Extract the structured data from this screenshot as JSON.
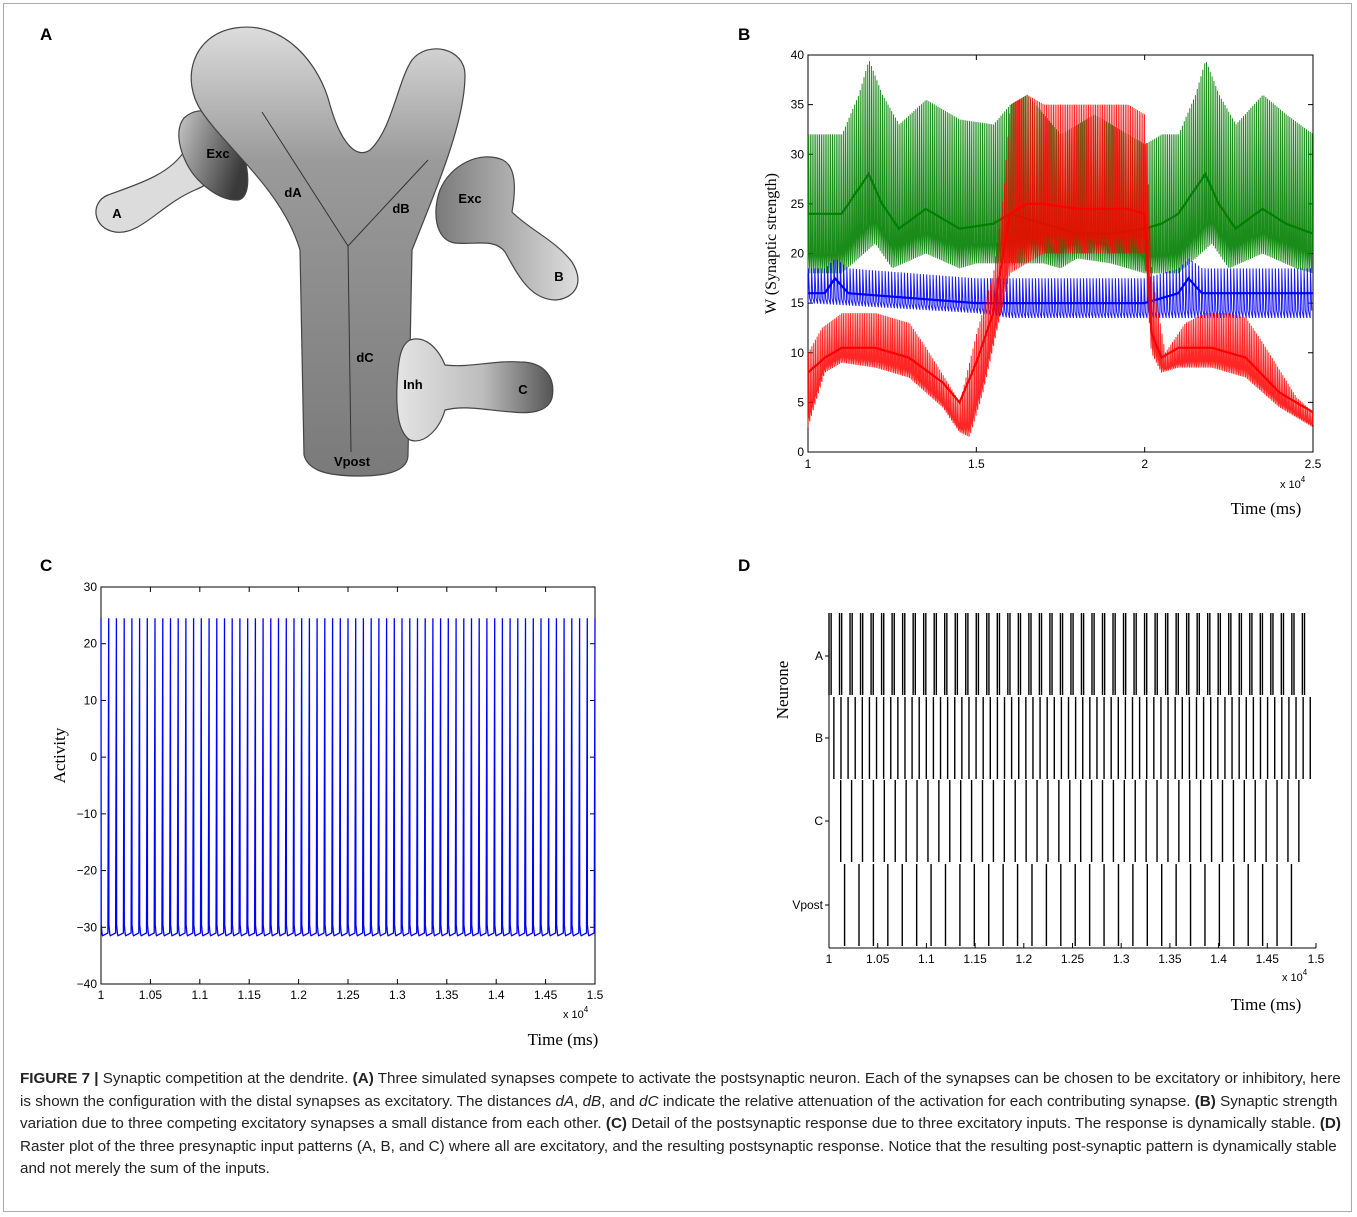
{
  "panels": {
    "A": {
      "letter": "A",
      "labels": {
        "exc_left": "Exc",
        "a": "A",
        "da": "dA",
        "db": "dB",
        "exc_right": "Exc",
        "b": "B",
        "dc": "dC",
        "inh": "Inh",
        "c": "C",
        "vpost": "Vpost"
      },
      "colors": {
        "light": "#dcdcdc",
        "dark": "#7a7a7a",
        "outline": "#444444"
      }
    },
    "B": {
      "letter": "B",
      "chart_data": {
        "type": "line",
        "xlabel": "Time (ms)",
        "ylabel": "W (Synaptic strength)",
        "x_multiplier": "x 10^4",
        "xlim": [
          1,
          2.5
        ],
        "ylim": [
          0,
          40
        ],
        "xticks": [
          "1",
          "1.5",
          "2",
          "2.5"
        ],
        "yticks": [
          "0",
          "5",
          "10",
          "15",
          "20",
          "25",
          "30",
          "35",
          "40"
        ],
        "series": [
          {
            "color": "#008000",
            "upper_x": [
              1,
              1.1,
              1.15,
              1.18,
              1.22,
              1.27,
              1.35,
              1.45,
              1.55,
              1.6,
              1.65,
              1.7,
              1.75,
              1.8,
              1.85,
              1.9,
              1.95,
              2.0,
              2.05,
              2.1,
              2.15,
              2.18,
              2.22,
              2.27,
              2.35,
              2.42,
              2.5
            ],
            "upper_y": [
              32,
              32,
              36,
              39.5,
              36,
              33,
              35.5,
              33.5,
              33,
              35,
              36,
              34,
              32,
              33,
              34,
              33,
              32,
              31,
              32,
              32,
              36,
              39.5,
              36,
              33,
              36,
              34,
              32
            ],
            "mid_x": [
              1,
              1.1,
              1.15,
              1.18,
              1.22,
              1.27,
              1.35,
              1.45,
              1.55,
              1.6,
              1.7,
              1.8,
              1.9,
              2.0,
              2.05,
              2.1,
              2.15,
              2.18,
              2.22,
              2.27,
              2.35,
              2.42,
              2.5
            ],
            "mid_y": [
              24,
              24,
              26.5,
              28,
              25,
              22.5,
              24.5,
              22.5,
              23,
              24,
              23,
              22,
              22,
              22.5,
              23,
              24,
              26.5,
              28,
              25,
              22.5,
              24.5,
              23,
              22
            ],
            "lower_x": [
              1,
              1.1,
              1.15,
              1.2,
              1.25,
              1.35,
              1.45,
              1.5,
              1.6,
              1.7,
              1.75,
              1.8,
              1.9,
              2.0,
              2.1,
              2.15,
              2.2,
              2.25,
              2.35,
              2.45,
              2.5
            ],
            "lower_y": [
              18,
              18,
              19.5,
              21,
              18.5,
              20,
              18.5,
              19,
              19,
              19,
              18.5,
              19.5,
              19,
              18,
              18,
              19.5,
              21,
              18.5,
              20,
              18.5,
              18
            ]
          },
          {
            "color": "#0000ff",
            "upper_x": [
              1,
              1.05,
              1.08,
              1.12,
              1.5,
              2.0,
              2.1,
              2.13,
              2.17,
              2.5
            ],
            "upper_y": [
              18.5,
              18.5,
              19.5,
              18.5,
              17.5,
              17.5,
              18.5,
              19.5,
              18.5,
              18.5
            ],
            "mid_x": [
              1,
              1.05,
              1.08,
              1.12,
              1.5,
              2.0,
              2.1,
              2.13,
              2.17,
              2.5
            ],
            "mid_y": [
              16,
              16,
              17.5,
              16,
              15,
              15,
              16,
              17.5,
              16,
              16
            ],
            "lower_x": [
              1,
              1.5,
              1.6,
              2.0,
              2.5
            ],
            "lower_y": [
              15,
              14,
              13.5,
              13.5,
              13.5
            ]
          },
          {
            "color": "#ff0000",
            "upper_x": [
              1,
              1.04,
              1.1,
              1.2,
              1.3,
              1.35,
              1.45,
              1.5,
              1.55,
              1.58,
              1.6,
              1.65,
              1.7,
              1.75,
              1.8,
              1.85,
              1.9,
              1.95,
              2.0,
              2.02,
              2.06,
              2.12,
              2.18,
              2.25,
              2.3,
              2.35,
              2.45,
              2.5
            ],
            "upper_y": [
              10,
              12.5,
              14,
              14,
              13,
              10.5,
              5,
              12,
              18,
              26,
              35,
              36,
              35,
              35,
              35,
              35,
              35,
              35,
              34,
              18,
              10,
              13,
              14,
              14,
              13.5,
              11,
              5.5,
              4
            ],
            "mid_x": [
              1,
              1.05,
              1.1,
              1.2,
              1.3,
              1.4,
              1.45,
              1.5,
              1.55,
              1.6,
              1.65,
              1.7,
              1.8,
              1.9,
              1.95,
              2.0,
              2.02,
              2.05,
              2.1,
              2.2,
              2.3,
              2.4,
              2.5
            ],
            "mid_y": [
              8,
              9.5,
              10.5,
              10.5,
              9.5,
              7,
              5,
              9,
              14,
              24,
              25,
              25,
              24.5,
              24.5,
              24.5,
              24,
              12,
              9.5,
              10.5,
              10.5,
              9.5,
              6,
              4
            ],
            "lower_x": [
              1,
              1.05,
              1.1,
              1.2,
              1.3,
              1.4,
              1.45,
              1.48,
              1.52,
              1.56,
              1.6,
              1.7,
              1.8,
              1.9,
              2.0,
              2.02,
              2.05,
              2.1,
              2.2,
              2.3,
              2.4,
              2.5
            ],
            "lower_y": [
              2.5,
              8,
              9,
              8.5,
              7.5,
              4.5,
              2,
              1.5,
              6,
              12,
              18,
              20,
              20,
              20,
              20,
              10,
              8,
              8.5,
              8.5,
              7.5,
              4.5,
              2.5
            ]
          }
        ],
        "oscillation_periods": [
          0.0055,
          0.0095,
          0.0052
        ]
      }
    },
    "C": {
      "letter": "C",
      "chart_data": {
        "type": "line",
        "xlabel": "Time (ms)",
        "ylabel": "Activity",
        "x_multiplier": "x 10^4",
        "xlim": [
          1,
          1.5
        ],
        "ylim": [
          -40,
          30
        ],
        "xticks": [
          "1",
          "1.05",
          "1.1",
          "1.15",
          "1.2",
          "1.25",
          "1.3",
          "1.35",
          "1.4",
          "1.45",
          "1.5"
        ],
        "yticks": [
          "-40",
          "-30",
          "-20",
          "-10",
          "0",
          "10",
          "20",
          "30"
        ],
        "series": [
          {
            "color": "#0000ff",
            "spike_count": 64,
            "spike_peak": 24.5,
            "baseline": -31.5,
            "reset_level": -29.5
          }
        ]
      }
    },
    "D": {
      "letter": "D",
      "chart_data": {
        "type": "raster",
        "xlabel": "Time (ms)",
        "ylabel": "Neurone",
        "x_multiplier": "x 10^4",
        "xlim": [
          1,
          1.5
        ],
        "xticks": [
          "1",
          "1.05",
          "1.1",
          "1.15",
          "1.2",
          "1.25",
          "1.3",
          "1.35",
          "1.4",
          "1.45",
          "1.5"
        ],
        "rows": [
          {
            "name": "A",
            "spike_pairs_start": 1.0,
            "pair_period": 0.0108,
            "pair_gap": 0.0022,
            "pair_count": 46
          },
          {
            "name": "B",
            "spike_start": 1.005,
            "period": 0.0073,
            "count": 68
          },
          {
            "name": "C",
            "spike_start": 1.012,
            "period": 0.0112,
            "count": 43
          },
          {
            "name": "Vpost",
            "spike_start": 1.016,
            "period": 0.0148,
            "count": 32
          }
        ]
      }
    }
  },
  "caption": {
    "figure": "FIGURE 7 |",
    "title": "Synaptic competition at the dendrite.",
    "a_tag": "(A)",
    "a_text_1": "Three simulated synapses compete to activate the postsynaptic neuron. Each of the synapses can be chosen to be excitatory or inhibitory, here is shown the configuration with the distal synapses as excitatory. The distances",
    "da": "dA",
    "comma1": ",",
    "db": "dB",
    "and": ", and",
    "dc": "dC",
    "a_text_2": "indicate the relative attenuation of the activation for each contributing synapse.",
    "b_tag": "(B)",
    "b_text": "Synaptic strength variation due to three competing excitatory synapses a small distance from each other.",
    "c_tag": "(C)",
    "c_text": "Detail of the postsynaptic response due to three excitatory inputs. The response is dynamically stable.",
    "d_tag": "(D)",
    "d_text": "Raster plot of the three presynaptic input patterns (A, B, and C) where all are excitatory, and the resulting postsynaptic response. Notice that the resulting post-synaptic pattern is dynamically stable and not merely the sum of the inputs."
  }
}
